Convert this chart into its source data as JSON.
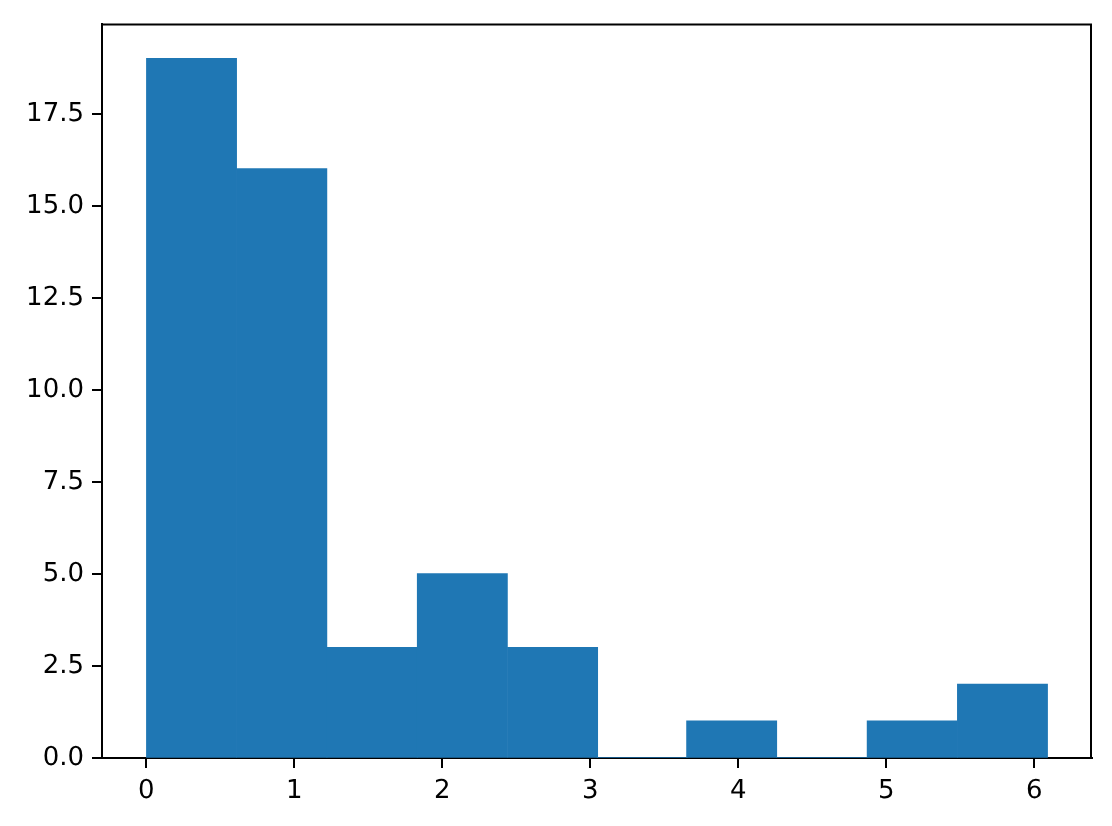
{
  "chart_data": {
    "type": "histogram",
    "bins": [
      0,
      0.61,
      1.22,
      1.83,
      2.44,
      3.05,
      3.65,
      4.26,
      4.87,
      5.48,
      6.09
    ],
    "values": [
      19,
      16,
      3,
      5,
      3,
      0,
      1,
      0,
      1,
      2
    ],
    "color": "#1f77b4",
    "xlim": [
      -0.3,
      6.39
    ],
    "xticks": [
      0,
      1,
      2,
      3,
      4,
      5,
      6
    ],
    "ylim": [
      0,
      19.95
    ],
    "yticks": [
      {
        "value": 0,
        "label": "0.0"
      },
      2.5,
      {
        "value": 5,
        "label": "5.0"
      },
      7.5,
      {
        "value": 10,
        "label": "10.0"
      },
      12.5,
      {
        "value": 15,
        "label": "15.0"
      },
      17.5
    ]
  }
}
